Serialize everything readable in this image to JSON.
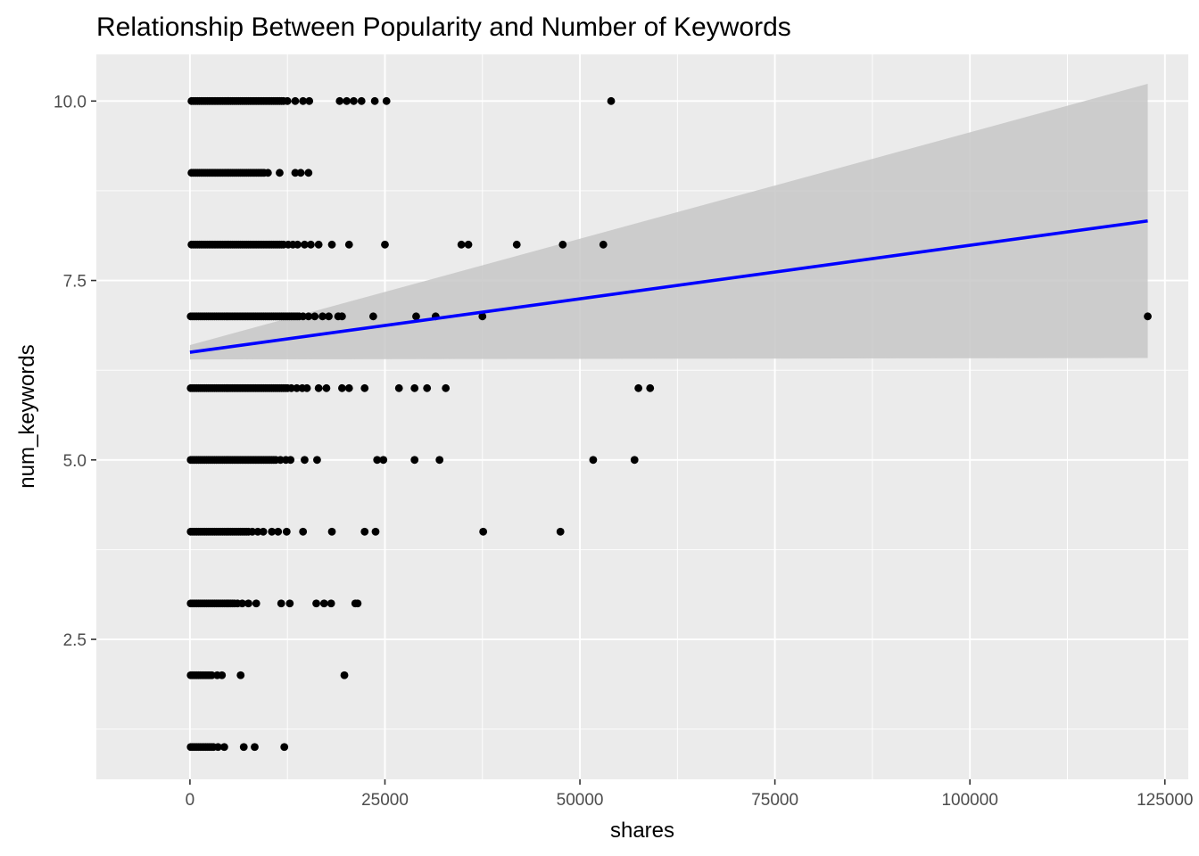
{
  "chart_data": {
    "type": "scatter",
    "title": "Relationship Between Popularity and Number of Keywords",
    "xlabel": "shares",
    "ylabel": "num_keywords",
    "xlim": [
      -12000,
      128000
    ],
    "ylim": [
      0.55,
      10.65
    ],
    "x_ticks": [
      0,
      25000,
      50000,
      75000,
      100000,
      125000
    ],
    "x_tick_labels": [
      "0",
      "25000",
      "50000",
      "75000",
      "100000",
      "125000"
    ],
    "y_ticks": [
      2.5,
      5.0,
      7.5,
      10.0
    ],
    "y_tick_labels": [
      "2.5",
      "5.0",
      "7.5",
      "10.0"
    ],
    "grid": true,
    "legend": "none",
    "colors": {
      "panel": "#ebebeb",
      "grid": "#ffffff",
      "points": "#000000",
      "fit_line": "#0000ff",
      "confidence_band": "#c7c7c7"
    },
    "fit": {
      "method": "linear",
      "x": [
        0,
        122800
      ],
      "y": [
        6.5,
        8.33
      ],
      "ci_lower": [
        6.4,
        6.42
      ],
      "ci_upper": [
        6.6,
        10.24
      ]
    },
    "series": [
      {
        "points": [
          {
            "y": 10,
            "x_dense": [
              200,
              12000
            ],
            "x": [
              12500,
              13500,
              14500,
              15300,
              19200,
              20100,
              21000,
              22000,
              23700,
              25200,
              54000
            ]
          },
          {
            "y": 9,
            "x_dense": [
              200,
              9500
            ],
            "x": [
              10000,
              11500,
              13500,
              14200,
              15200
            ]
          },
          {
            "y": 8,
            "x_dense": [
              200,
              12000
            ],
            "x": [
              12600,
              13200,
              13800,
              14700,
              15500,
              16500,
              18200,
              20400,
              25000,
              34800,
              35700,
              41900,
              47800,
              53000
            ]
          },
          {
            "y": 7,
            "x_dense": [
              100,
              14000
            ],
            "x": [
              14500,
              15200,
              16000,
              17000,
              17800,
              19000,
              19500,
              23500,
              29000,
              31500,
              37500,
              122800
            ]
          },
          {
            "y": 6,
            "x_dense": [
              100,
              12500
            ],
            "x": [
              13000,
              13700,
              14400,
              15000,
              16500,
              17500,
              19500,
              20400,
              22400,
              26800,
              28800,
              30400,
              32800,
              57500,
              59000
            ]
          },
          {
            "y": 5,
            "x_dense": [
              100,
              11000
            ],
            "x": [
              11600,
              12300,
              12900,
              14700,
              16300,
              24000,
              24800,
              28800,
              32000,
              51700,
              57000
            ]
          },
          {
            "y": 4,
            "x_dense": [
              100,
              7500
            ],
            "x": [
              8000,
              8700,
              9400,
              10500,
              11300,
              12400,
              14500,
              18200,
              22400,
              23800,
              37600,
              47500
            ]
          },
          {
            "y": 3,
            "x_dense": [
              100,
              5700
            ],
            "x": [
              6100,
              6700,
              7500,
              8500,
              11700,
              12800,
              16200,
              17200,
              18100,
              21200,
              21500
            ]
          },
          {
            "y": 2,
            "x_dense": [
              100,
              2800
            ],
            "x": [
              3500,
              4100,
              6500,
              19800
            ]
          },
          {
            "y": 1,
            "x_dense": [
              100,
              3000
            ],
            "x": [
              3600,
              4400,
              6900,
              8300,
              12100
            ]
          }
        ]
      }
    ]
  }
}
